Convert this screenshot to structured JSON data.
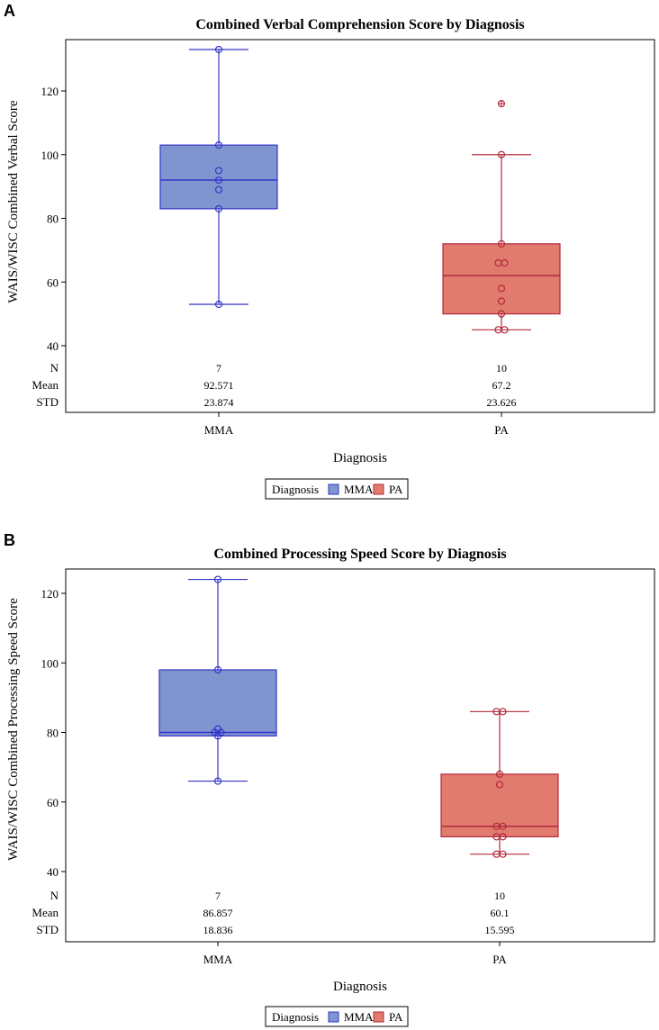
{
  "colors": {
    "MMA_fill": "#7f95cf",
    "MMA_stroke": "#3535c8",
    "PA_fill": "#e07b6e",
    "PA_stroke": "#b3283a"
  },
  "chart_data": [
    {
      "panel": "A",
      "type": "box",
      "title": "Combined Verbal Comprehension Score by Diagnosis",
      "xlabel": "Diagnosis",
      "ylabel": "WAIS/WISC Combined Verbal Score",
      "ylim": [
        40,
        135
      ],
      "yticks": [
        40,
        60,
        80,
        100,
        120
      ],
      "categories": [
        "MMA",
        "PA"
      ],
      "legend": {
        "title": "Diagnosis",
        "entries": [
          "MMA",
          "PA"
        ],
        "placement": "bottom"
      },
      "stats_labels": [
        "N",
        "Mean",
        "STD"
      ],
      "groups": [
        {
          "name": "MMA",
          "q1": 83,
          "median": 92,
          "q3": 103,
          "whisker_low": 53,
          "whisker_high": 133,
          "points": [
            133,
            103,
            95,
            92,
            89,
            83,
            53
          ],
          "outliers": [],
          "N": "7",
          "Mean": "92.571",
          "STD": "23.874"
        },
        {
          "name": "PA",
          "q1": 50,
          "median": 62,
          "q3": 72,
          "whisker_low": 45,
          "whisker_high": 100,
          "points": [
            100,
            72,
            66,
            66,
            58,
            54,
            50,
            45,
            45
          ],
          "outliers": [
            116
          ],
          "N": "10",
          "Mean": "67.2",
          "STD": "23.626"
        }
      ]
    },
    {
      "panel": "B",
      "type": "box",
      "title": "Combined Processing Speed Score by Diagnosis",
      "xlabel": "Diagnosis",
      "ylabel": "WAIS/WISC Combined Processing Speed Score",
      "ylim": [
        40,
        126
      ],
      "yticks": [
        40,
        60,
        80,
        100,
        120
      ],
      "categories": [
        "MMA",
        "PA"
      ],
      "legend": {
        "title": "Diagnosis",
        "entries": [
          "MMA",
          "PA"
        ],
        "placement": "bottom"
      },
      "stats_labels": [
        "N",
        "Mean",
        "STD"
      ],
      "groups": [
        {
          "name": "MMA",
          "q1": 79,
          "median": 80,
          "q3": 98,
          "whisker_low": 66,
          "whisker_high": 124,
          "points": [
            124,
            98,
            81,
            80,
            80,
            79,
            66
          ],
          "outliers": [],
          "N": "7",
          "Mean": "86.857",
          "STD": "18.836"
        },
        {
          "name": "PA",
          "q1": 50,
          "median": 53,
          "q3": 68,
          "whisker_low": 45,
          "whisker_high": 86,
          "points": [
            86,
            86,
            68,
            65,
            53,
            53,
            50,
            50,
            45,
            45
          ],
          "outliers": [],
          "N": "10",
          "Mean": "60.1",
          "STD": "15.595"
        }
      ]
    }
  ]
}
